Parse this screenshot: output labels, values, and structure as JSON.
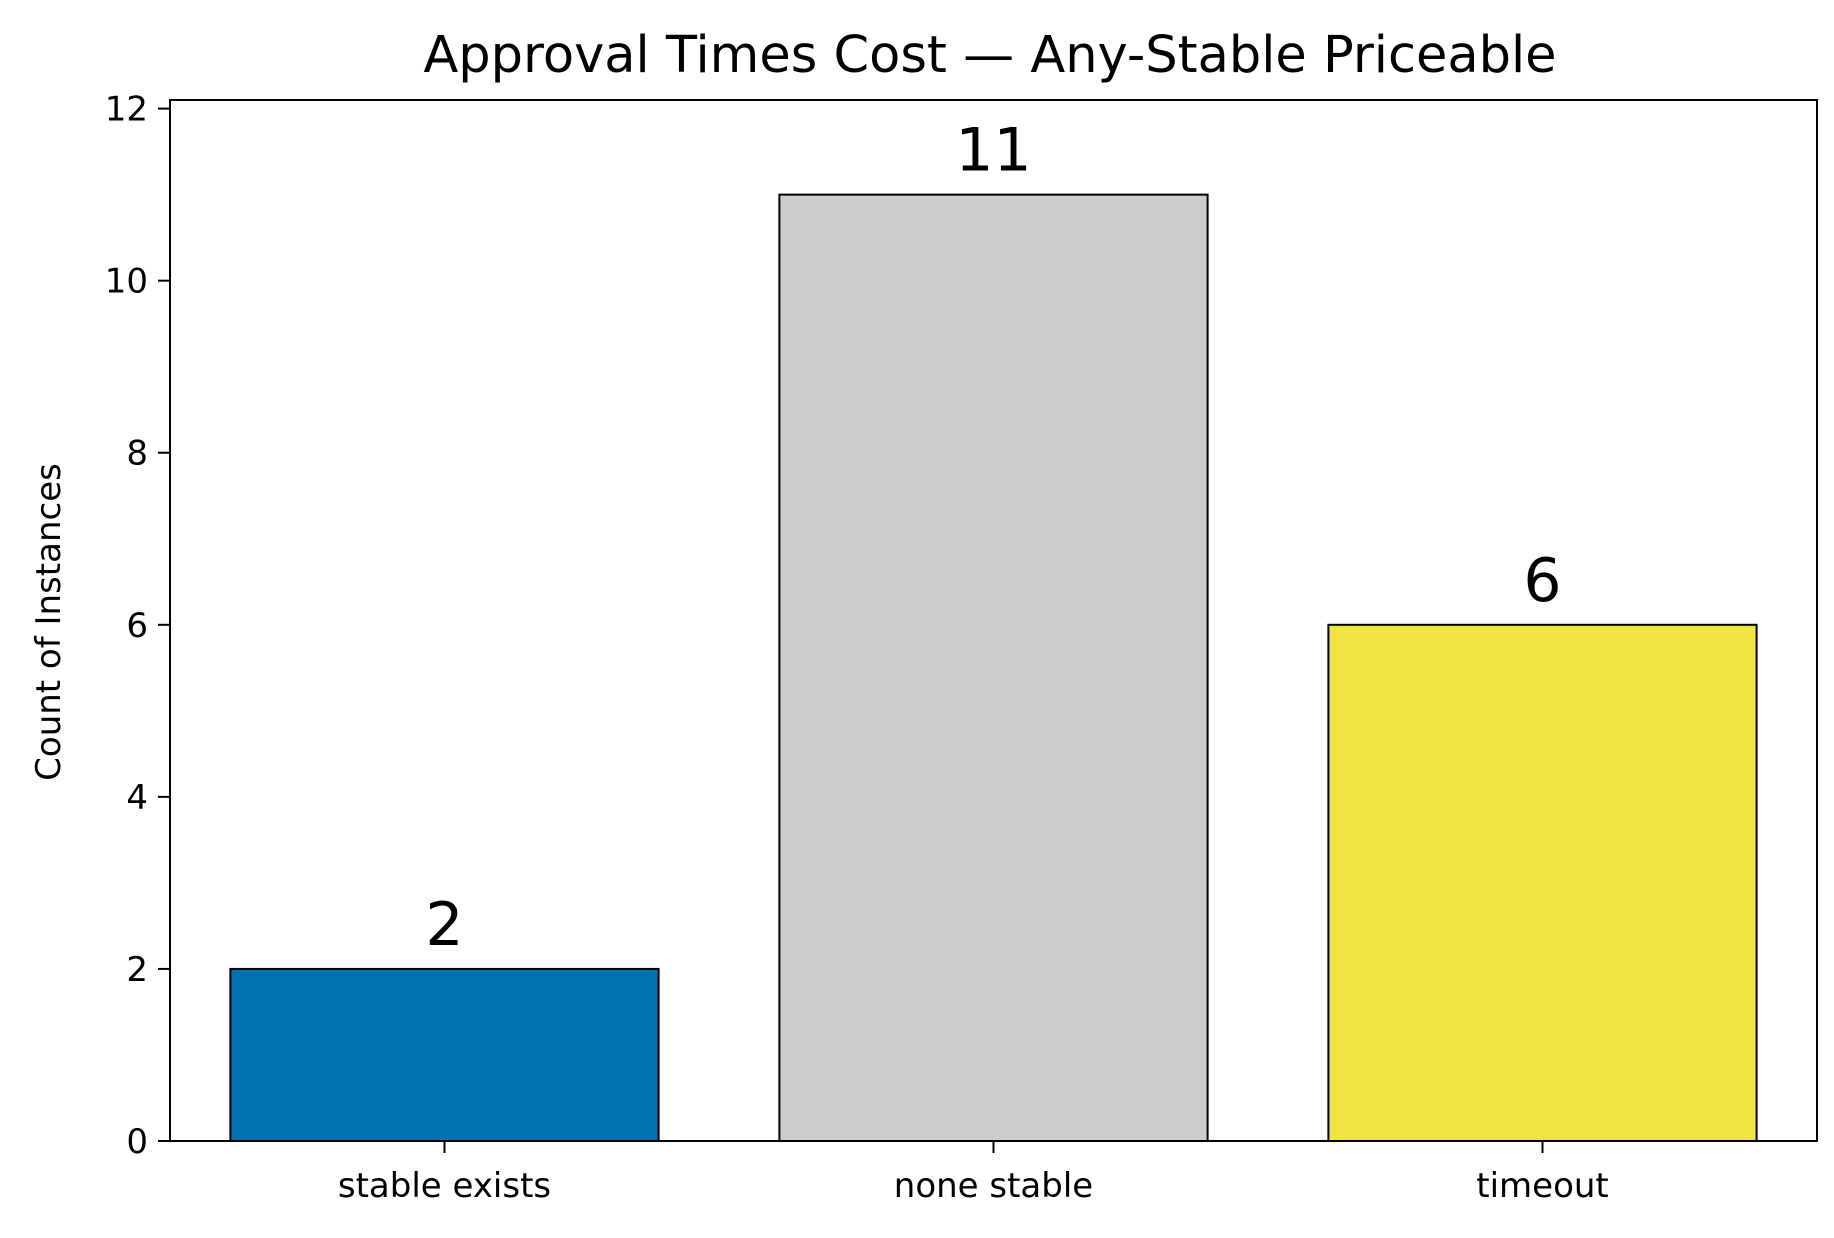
{
  "chart_data": {
    "type": "bar",
    "title": "Approval Times Cost — Any-Stable Priceable",
    "xlabel": "",
    "ylabel": "Count of Instances",
    "categories": [
      "stable exists",
      "none stable",
      "timeout"
    ],
    "values": [
      2,
      11,
      6
    ],
    "data_labels": [
      "2",
      "11",
      "6"
    ],
    "bar_colors": [
      "#0072b2",
      "#cccccc",
      "#f0e442"
    ],
    "ylim": [
      0,
      12.1
    ],
    "yticks": [
      0,
      2,
      4,
      6,
      8,
      10,
      12
    ],
    "grid": false,
    "legend": "none"
  }
}
